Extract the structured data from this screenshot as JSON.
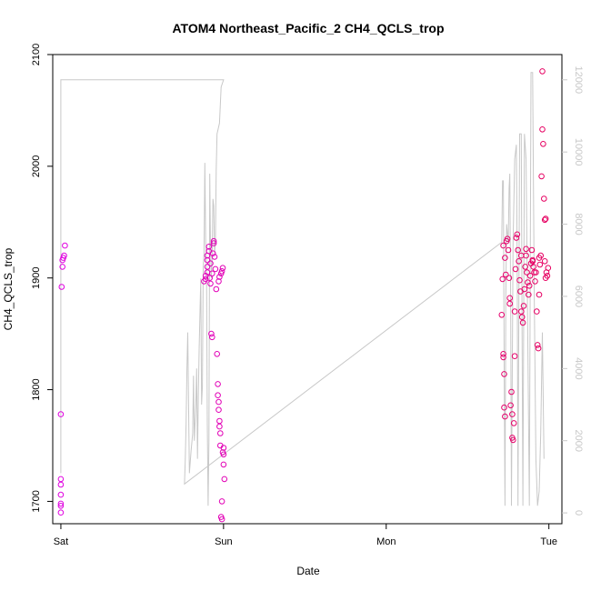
{
  "chart_data": {
    "type": "scatter",
    "title": "ATOM4 Northeast_Pacific_2 CH4_QCLS_trop",
    "xlabel": "Date",
    "ylabel": "CH4_QCLS_trop",
    "x_axis": {
      "type": "date",
      "ticks": [
        "Sat",
        "Sun",
        "Mon",
        "Tue"
      ],
      "range_days": [
        -0.05,
        3.08
      ]
    },
    "y_axis_left": {
      "range": [
        1680,
        2100
      ],
      "ticks": [
        1700,
        1800,
        1900,
        2000,
        2100
      ]
    },
    "y_axis_right": {
      "range": [
        -300,
        12700
      ],
      "ticks": [
        0,
        2000,
        4000,
        6000,
        8000,
        10000,
        12000
      ],
      "color": "#c8c8c8"
    },
    "grid": false,
    "series": [
      {
        "kind": "points",
        "marker": "open-circle",
        "color_start": "#e000e0",
        "color_end": "#e60060",
        "points": [
          [
            0.0,
            1690
          ],
          [
            0.0,
            1696
          ],
          [
            0.0,
            1698
          ],
          [
            0.0,
            1706
          ],
          [
            0.0,
            1715
          ],
          [
            0.0,
            1720
          ],
          [
            0.0,
            1778
          ],
          [
            0.005,
            1892
          ],
          [
            0.01,
            1910
          ],
          [
            0.01,
            1916
          ],
          [
            0.015,
            1918
          ],
          [
            0.02,
            1920
          ],
          [
            0.025,
            1929
          ],
          [
            0.88,
            1897
          ],
          [
            0.89,
            1899
          ],
          [
            0.89,
            1902
          ],
          [
            0.9,
            1905
          ],
          [
            0.9,
            1910
          ],
          [
            0.9,
            1916
          ],
          [
            0.9,
            1920
          ],
          [
            0.91,
            1924
          ],
          [
            0.91,
            1928
          ],
          [
            0.915,
            1900
          ],
          [
            0.92,
            1895
          ],
          [
            0.92,
            1913
          ],
          [
            0.925,
            1850
          ],
          [
            0.93,
            1847
          ],
          [
            0.93,
            1904
          ],
          [
            0.935,
            1922
          ],
          [
            0.94,
            1931
          ],
          [
            0.94,
            1933
          ],
          [
            0.945,
            1919
          ],
          [
            0.95,
            1908
          ],
          [
            0.955,
            1890
          ],
          [
            0.96,
            1832
          ],
          [
            0.965,
            1805
          ],
          [
            0.965,
            1795
          ],
          [
            0.97,
            1789
          ],
          [
            0.97,
            1782
          ],
          [
            0.975,
            1772
          ],
          [
            0.975,
            1767
          ],
          [
            0.98,
            1761
          ],
          [
            0.98,
            1750
          ],
          [
            0.985,
            1686
          ],
          [
            0.99,
            1684
          ],
          [
            0.99,
            1700
          ],
          [
            0.995,
            1744
          ],
          [
            1.0,
            1742
          ],
          [
            1.0,
            1748
          ],
          [
            1.0,
            1733
          ],
          [
            1.005,
            1720
          ],
          [
            0.97,
            1897
          ],
          [
            0.975,
            1901
          ],
          [
            0.985,
            1904
          ],
          [
            0.99,
            1906
          ],
          [
            0.995,
            1909
          ],
          [
            2.71,
            1867
          ],
          [
            2.715,
            1899
          ],
          [
            2.72,
            1929
          ],
          [
            2.72,
            1832
          ],
          [
            2.72,
            1829
          ],
          [
            2.725,
            1814
          ],
          [
            2.725,
            1784
          ],
          [
            2.73,
            1776
          ],
          [
            2.73,
            1918
          ],
          [
            2.735,
            1903
          ],
          [
            2.74,
            1933
          ],
          [
            2.745,
            1935
          ],
          [
            2.75,
            1925
          ],
          [
            2.755,
            1900
          ],
          [
            2.76,
            1882
          ],
          [
            2.76,
            1877
          ],
          [
            2.765,
            1786
          ],
          [
            2.77,
            1798
          ],
          [
            2.775,
            1778
          ],
          [
            2.775,
            1757
          ],
          [
            2.78,
            1755
          ],
          [
            2.785,
            1770
          ],
          [
            2.79,
            1830
          ],
          [
            2.79,
            1870
          ],
          [
            2.795,
            1908
          ],
          [
            2.8,
            1936
          ],
          [
            2.805,
            1939
          ],
          [
            2.81,
            1925
          ],
          [
            2.815,
            1915
          ],
          [
            2.82,
            1898
          ],
          [
            2.825,
            1888
          ],
          [
            2.83,
            1870
          ],
          [
            2.835,
            1865
          ],
          [
            2.84,
            1860
          ],
          [
            2.845,
            1875
          ],
          [
            2.85,
            1890
          ],
          [
            2.855,
            1910
          ],
          [
            2.86,
            1920
          ],
          [
            2.865,
            1905
          ],
          [
            2.87,
            1896
          ],
          [
            2.875,
            1885
          ],
          [
            2.88,
            1893
          ],
          [
            2.885,
            1902
          ],
          [
            2.89,
            1913
          ],
          [
            2.895,
            1925
          ],
          [
            2.9,
            1916
          ],
          [
            2.905,
            1910
          ],
          [
            2.91,
            1905
          ],
          [
            2.915,
            1897
          ],
          [
            2.92,
            1905
          ],
          [
            2.925,
            1870
          ],
          [
            2.93,
            1840
          ],
          [
            2.935,
            1837
          ],
          [
            2.94,
            1885
          ],
          [
            2.945,
            1912
          ],
          [
            2.95,
            1920
          ],
          [
            2.955,
            1991
          ],
          [
            2.96,
            2033
          ],
          [
            2.965,
            2020
          ],
          [
            2.97,
            1971
          ],
          [
            2.975,
            1952
          ],
          [
            2.98,
            1953
          ],
          [
            2.985,
            1905
          ],
          [
            2.99,
            1902
          ],
          [
            2.995,
            1909
          ],
          [
            2.96,
            2085
          ],
          [
            2.83,
            1920
          ],
          [
            2.86,
            1926
          ],
          [
            2.9,
            1915
          ],
          [
            2.94,
            1918
          ],
          [
            2.975,
            1915
          ],
          [
            2.98,
            1900
          ]
        ]
      },
      {
        "kind": "line",
        "axis": "right",
        "color": "#c8c8c8",
        "points": [
          [
            0.0,
            1100
          ],
          [
            0.0,
            12000
          ],
          [
            1.0,
            12000
          ],
          [
            0.985,
            11800
          ],
          [
            0.975,
            10800
          ],
          [
            0.96,
            10500
          ],
          [
            0.955,
            9500
          ],
          [
            0.95,
            7500
          ],
          [
            0.945,
            7200
          ],
          [
            0.94,
            8500
          ],
          [
            0.935,
            8700
          ],
          [
            0.93,
            7000
          ],
          [
            0.925,
            6500
          ],
          [
            0.92,
            7400
          ],
          [
            0.915,
            9400
          ],
          [
            0.91,
            2000
          ],
          [
            0.905,
            200
          ],
          [
            0.9,
            2500
          ],
          [
            0.895,
            7000
          ],
          [
            0.89,
            7500
          ],
          [
            0.885,
            9700
          ],
          [
            0.88,
            7200
          ],
          [
            0.875,
            6800
          ],
          [
            0.87,
            3500
          ],
          [
            0.865,
            3000
          ],
          [
            0.86,
            6500
          ],
          [
            0.85,
            4500
          ],
          [
            0.845,
            3200
          ],
          [
            0.84,
            1500
          ],
          [
            0.835,
            4000
          ],
          [
            0.83,
            3000
          ],
          [
            0.82,
            2000
          ],
          [
            0.815,
            3800
          ],
          [
            0.81,
            2200
          ],
          [
            0.8,
            1700
          ],
          [
            0.79,
            1100
          ],
          [
            0.785,
            3000
          ],
          [
            0.78,
            5000
          ],
          [
            0.775,
            4000
          ],
          [
            0.77,
            2500
          ],
          [
            0.765,
            1500
          ],
          [
            0.76,
            800
          ],
          [
            2.71,
            7500
          ],
          [
            2.715,
            9200
          ],
          [
            2.72,
            9200
          ],
          [
            2.725,
            4000
          ],
          [
            2.73,
            200
          ],
          [
            2.735,
            6000
          ],
          [
            2.74,
            8000
          ],
          [
            2.75,
            7500
          ],
          [
            2.755,
            9000
          ],
          [
            2.76,
            9400
          ],
          [
            2.765,
            6000
          ],
          [
            2.77,
            200
          ],
          [
            2.78,
            7500
          ],
          [
            2.79,
            9800
          ],
          [
            2.8,
            10200
          ],
          [
            2.805,
            7000
          ],
          [
            2.81,
            200
          ],
          [
            2.82,
            10500
          ],
          [
            2.83,
            10500
          ],
          [
            2.835,
            5000
          ],
          [
            2.84,
            200
          ],
          [
            2.85,
            10500
          ],
          [
            2.86,
            9800
          ],
          [
            2.87,
            5000
          ],
          [
            2.88,
            200
          ],
          [
            2.89,
            12200
          ],
          [
            2.9,
            12200
          ],
          [
            2.91,
            6000
          ],
          [
            2.92,
            1500
          ],
          [
            2.93,
            200
          ],
          [
            2.94,
            600
          ],
          [
            2.95,
            2200
          ],
          [
            2.96,
            5000
          ],
          [
            2.97,
            1500
          ]
        ]
      }
    ]
  }
}
